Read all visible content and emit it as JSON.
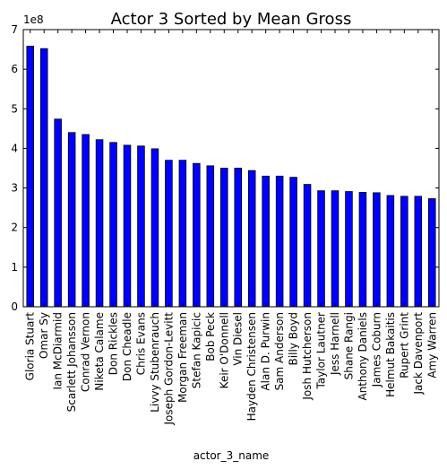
{
  "chart_data": {
    "type": "bar",
    "title": "Actor 3 Sorted by Mean Gross",
    "xlabel": "actor_3_name",
    "ylabel": "",
    "y_scale_label": "1e8",
    "ylim": [
      0,
      7
    ],
    "yticks": [
      "0",
      "1",
      "2",
      "3",
      "4",
      "5",
      "6",
      "7"
    ],
    "grid": false,
    "bar_color": "#0000ff",
    "categories": [
      "Gloria Stuart",
      "Omar Sy",
      "Ian McDiarmid",
      "Scarlett Johansson",
      "Conrad Vernon",
      "Niketa Calame",
      "Don Rickles",
      "Don Cheadle",
      "Chris Evans",
      "Livvy Stubenrauch",
      "Joseph Gordon-Levitt",
      "Morgan Freeman",
      "Stefan Kapicic",
      "Bob Peck",
      "Keir O'Donnell",
      "Vin Diesel",
      "Hayden Christensen",
      "Alan D. Purwin",
      "Sam Anderson",
      "Billy Boyd",
      "Josh Hutcherson",
      "Taylor Lautner",
      "Jess Harnell",
      "Shane Rangi",
      "Anthony Daniels",
      "James Coburn",
      "Helmut Bakaitis",
      "Rupert Grint",
      "Jack Davenport",
      "Amy Warren"
    ],
    "values": [
      6.58,
      6.52,
      4.74,
      4.4,
      4.35,
      4.22,
      4.15,
      4.08,
      4.06,
      3.99,
      3.7,
      3.7,
      3.62,
      3.56,
      3.5,
      3.5,
      3.44,
      3.3,
      3.3,
      3.27,
      3.09,
      2.93,
      2.93,
      2.91,
      2.89,
      2.88,
      2.81,
      2.79,
      2.79,
      2.73
    ]
  }
}
